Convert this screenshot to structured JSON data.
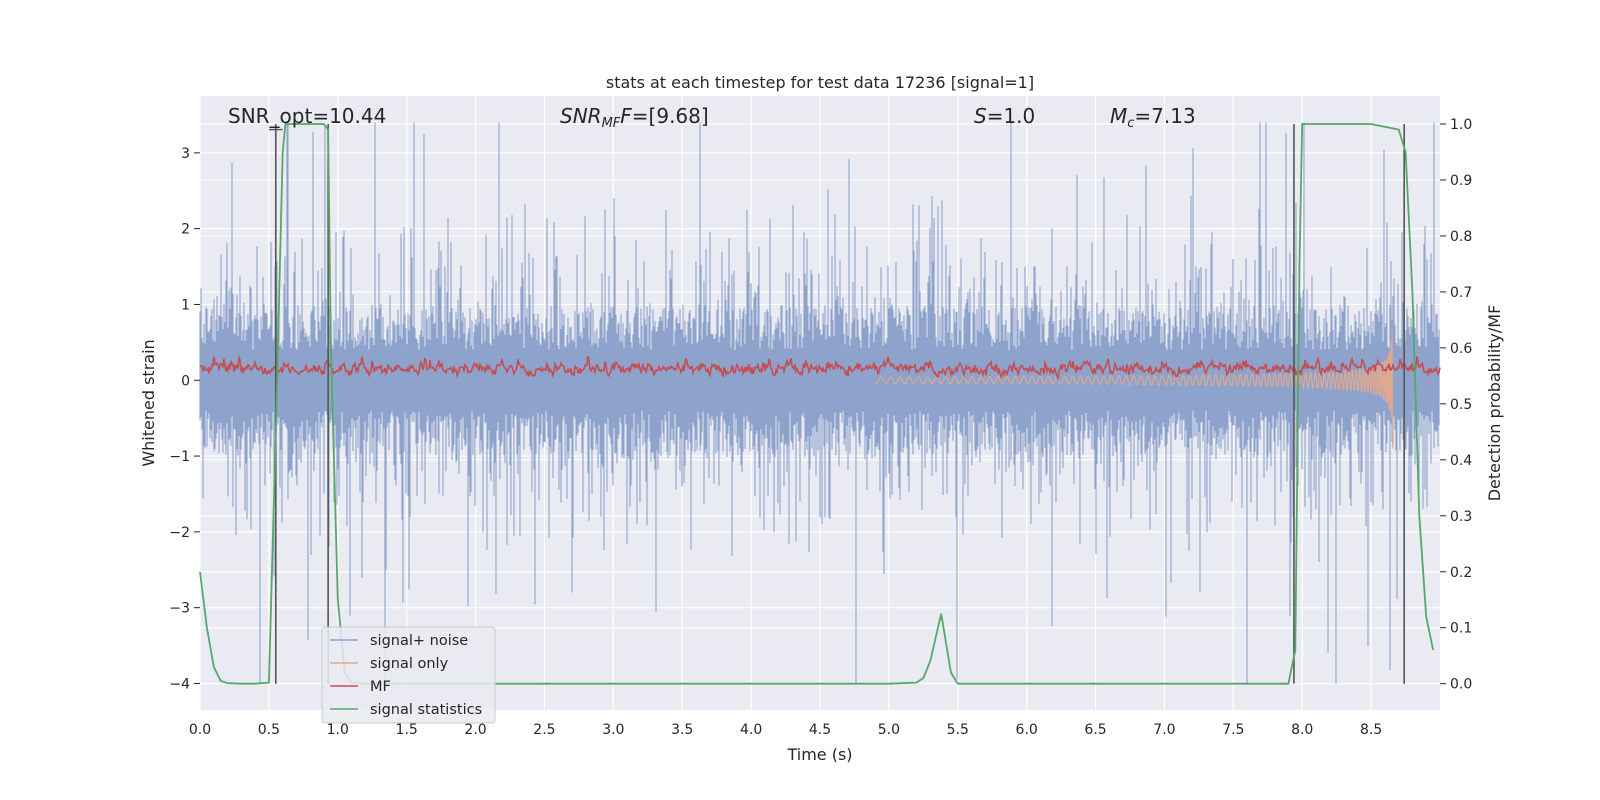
{
  "chart_data": {
    "type": "line",
    "title": "stats at each timestep for test data 17236 [signal=1]",
    "xlabel": "Time (s)",
    "ylabel": "Whitened strain",
    "ylabel_right": "Detection probability/MF",
    "xlim": [
      0,
      9.0
    ],
    "ylim": [
      -4.35,
      3.75
    ],
    "ylim_right": [
      -0.047,
      1.05
    ],
    "xticks": [
      "0.0",
      "0.5",
      "1.0",
      "1.5",
      "2.0",
      "2.5",
      "3.0",
      "3.5",
      "4.0",
      "4.5",
      "5.0",
      "5.5",
      "6.0",
      "6.5",
      "7.0",
      "7.5",
      "8.0",
      "8.5"
    ],
    "yticks": [
      "3",
      "2",
      "1",
      "0",
      "−1",
      "−2",
      "−3",
      "−4"
    ],
    "yticks_right": [
      "1.0",
      "0.9",
      "0.8",
      "0.7",
      "0.6",
      "0.5",
      "0.4",
      "0.3",
      "0.2",
      "0.1",
      "0.0"
    ],
    "grid": true,
    "legend_position": "lower-left",
    "annotations": [
      {
        "text": "SNR_opt=10.44"
      },
      {
        "text": "SNR_MF=[9.68]"
      },
      {
        "text": "S=1.0"
      },
      {
        "text": "M_c=7.13"
      }
    ],
    "series": [
      {
        "name": "signal+ noise",
        "color": "#8ea3cc",
        "axis": "left",
        "description": "noise band approx ±1.2 core with spikes to ±3.4 across 0–9 s"
      },
      {
        "name": "signal only",
        "color": "#e8a88a",
        "axis": "left",
        "description": "chirp growing from ~5.0 s, peak amplitude ~1.1 at 8.65 s, ends 8.66 s"
      },
      {
        "name": "MF",
        "color": "#c44e52",
        "axis": "left",
        "description": "matched filter output around 0.15 with fluctuations 0–0.5"
      },
      {
        "name": "signal statistics",
        "color": "#55a868",
        "axis": "right",
        "x": [
          0.0,
          0.05,
          0.1,
          0.15,
          0.2,
          0.3,
          0.4,
          0.5,
          0.55,
          0.6,
          0.62,
          0.65,
          0.7,
          0.8,
          0.9,
          0.93,
          0.95,
          1.0,
          1.05,
          1.1,
          1.2,
          2.0,
          3.0,
          4.0,
          5.0,
          5.2,
          5.25,
          5.3,
          5.38,
          5.45,
          5.5,
          6.0,
          7.0,
          7.9,
          7.95,
          7.98,
          8.0,
          8.05,
          8.2,
          8.5,
          8.7,
          8.75,
          8.8,
          8.85,
          8.9,
          8.95
        ],
        "y": [
          0.2,
          0.1,
          0.03,
          0.005,
          0.001,
          0.0,
          0.0,
          0.002,
          0.45,
          0.95,
          1.0,
          1.0,
          1.0,
          1.0,
          1.0,
          0.99,
          0.6,
          0.15,
          0.02,
          0.002,
          0.0,
          0.0,
          0.0,
          0.0,
          0.0,
          0.002,
          0.01,
          0.04,
          0.125,
          0.02,
          0.0,
          0.0,
          0.0,
          0.0,
          0.06,
          0.75,
          1.0,
          1.0,
          1.0,
          1.0,
          0.99,
          0.95,
          0.7,
          0.3,
          0.12,
          0.06
        ]
      },
      {
        "name": "segment markers",
        "color": "#555555",
        "axis": "right",
        "x_positions": [
          0.55,
          0.93,
          7.94,
          8.74
        ]
      }
    ]
  }
}
